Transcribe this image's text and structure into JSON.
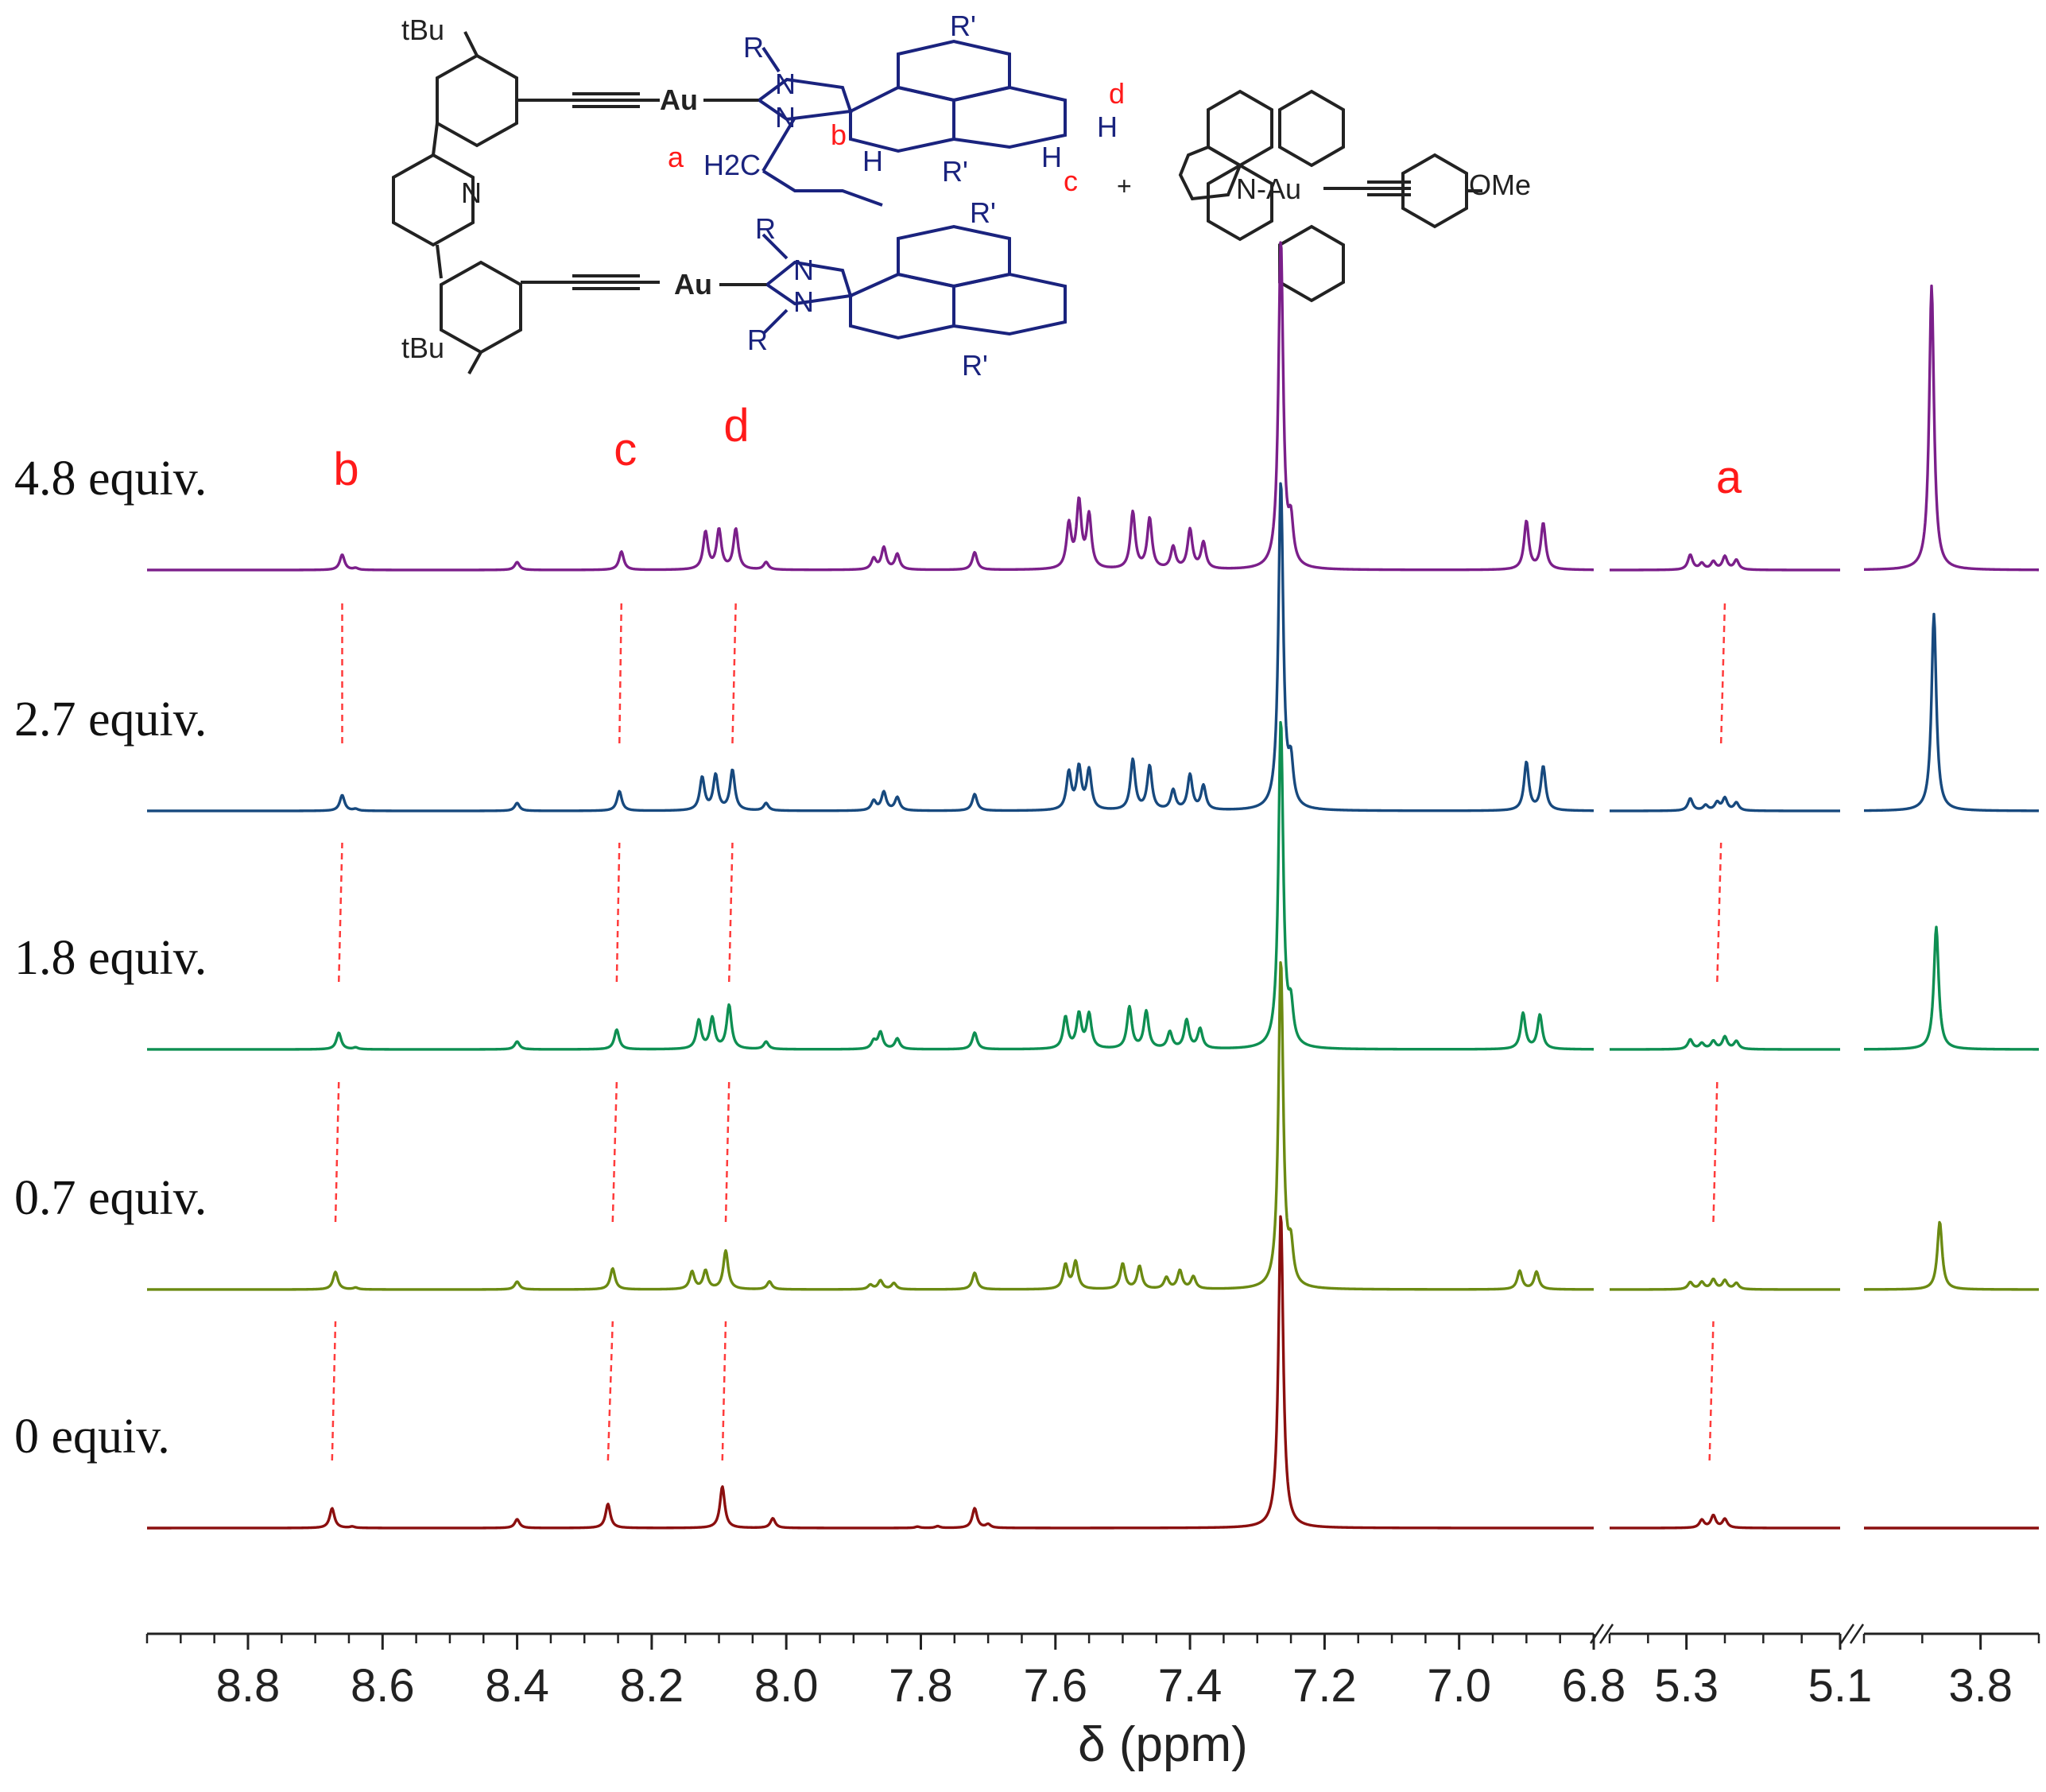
{
  "chart_data": {
    "type": "line",
    "title": "",
    "xlabel": "δ (ppm)",
    "ylabel": "",
    "grid": false,
    "axis_segments": [
      {
        "xlim": [
          8.95,
          6.8
        ],
        "ticks": [
          "8.8",
          "8.6",
          "8.4",
          "8.2",
          "8.0",
          "7.8",
          "7.6",
          "7.4",
          "7.2",
          "7.0",
          "6.8"
        ],
        "tick_values": [
          8.8,
          8.6,
          8.4,
          8.2,
          8.0,
          7.8,
          7.6,
          7.4,
          7.2,
          7.0,
          6.8
        ]
      },
      {
        "xlim": [
          5.4,
          5.1
        ],
        "ticks": [
          "5.3",
          "5.1"
        ],
        "tick_values": [
          5.3,
          5.1
        ]
      },
      {
        "xlim": [
          3.9,
          3.75
        ],
        "ticks": [
          "3.8"
        ],
        "tick_values": [
          3.8
        ]
      }
    ],
    "series": [
      {
        "name": "4.8 equiv.",
        "label": "4.8 equiv.",
        "color": "#7b1f8a",
        "peaks": [
          [
            8.66,
            0.35
          ],
          [
            8.64,
            0.04
          ],
          [
            8.4,
            0.18
          ],
          [
            8.245,
            0.42
          ],
          [
            8.12,
            0.85
          ],
          [
            8.1,
            0.9
          ],
          [
            8.075,
            0.92
          ],
          [
            8.03,
            0.17
          ],
          [
            7.87,
            0.25
          ],
          [
            7.855,
            0.5
          ],
          [
            7.835,
            0.35
          ],
          [
            7.72,
            0.4
          ],
          [
            7.58,
            1.0
          ],
          [
            7.565,
            1.5
          ],
          [
            7.55,
            1.2
          ],
          [
            7.485,
            1.3
          ],
          [
            7.46,
            1.15
          ],
          [
            7.425,
            0.5
          ],
          [
            7.4,
            0.9
          ],
          [
            7.38,
            0.6
          ],
          [
            7.265,
            7.5
          ],
          [
            7.25,
            0.9
          ],
          [
            6.9,
            1.1
          ],
          [
            6.875,
            1.05
          ],
          [
            5.295,
            0.34
          ],
          [
            5.28,
            0.14
          ],
          [
            5.265,
            0.18
          ],
          [
            5.25,
            0.3
          ],
          [
            5.235,
            0.22
          ],
          [
            3.842,
            6.5
          ]
        ]
      },
      {
        "name": "2.7 equiv.",
        "label": "2.7 equiv.",
        "color": "#17497e",
        "peaks": [
          [
            8.66,
            0.36
          ],
          [
            8.64,
            0.04
          ],
          [
            8.4,
            0.18
          ],
          [
            8.248,
            0.45
          ],
          [
            8.125,
            0.75
          ],
          [
            8.105,
            0.8
          ],
          [
            8.08,
            0.92
          ],
          [
            8.03,
            0.17
          ],
          [
            7.87,
            0.22
          ],
          [
            7.855,
            0.42
          ],
          [
            7.835,
            0.3
          ],
          [
            7.72,
            0.38
          ],
          [
            7.58,
            0.85
          ],
          [
            7.565,
            0.95
          ],
          [
            7.55,
            0.9
          ],
          [
            7.485,
            1.15
          ],
          [
            7.46,
            1.0
          ],
          [
            7.425,
            0.45
          ],
          [
            7.4,
            0.8
          ],
          [
            7.38,
            0.55
          ],
          [
            7.265,
            7.5
          ],
          [
            7.25,
            0.9
          ],
          [
            6.9,
            1.1
          ],
          [
            6.875,
            1.0
          ],
          [
            5.295,
            0.28
          ],
          [
            5.275,
            0.12
          ],
          [
            5.26,
            0.18
          ],
          [
            5.25,
            0.28
          ],
          [
            5.235,
            0.18
          ],
          [
            3.84,
            4.5
          ]
        ]
      },
      {
        "name": "1.8 equiv.",
        "label": "1.8 equiv.",
        "color": "#0e8f52",
        "peaks": [
          [
            8.665,
            0.38
          ],
          [
            8.64,
            0.04
          ],
          [
            8.4,
            0.18
          ],
          [
            8.252,
            0.45
          ],
          [
            8.13,
            0.65
          ],
          [
            8.11,
            0.7
          ],
          [
            8.085,
            1.0
          ],
          [
            8.03,
            0.17
          ],
          [
            7.87,
            0.18
          ],
          [
            7.86,
            0.38
          ],
          [
            7.835,
            0.24
          ],
          [
            7.72,
            0.38
          ],
          [
            7.585,
            0.72
          ],
          [
            7.565,
            0.78
          ],
          [
            7.55,
            0.78
          ],
          [
            7.49,
            0.95
          ],
          [
            7.465,
            0.85
          ],
          [
            7.43,
            0.38
          ],
          [
            7.405,
            0.65
          ],
          [
            7.385,
            0.45
          ],
          [
            7.265,
            7.5
          ],
          [
            7.25,
            0.8
          ],
          [
            6.905,
            0.82
          ],
          [
            6.88,
            0.78
          ],
          [
            5.295,
            0.22
          ],
          [
            5.28,
            0.13
          ],
          [
            5.265,
            0.18
          ],
          [
            5.25,
            0.28
          ],
          [
            5.235,
            0.18
          ],
          [
            3.838,
            2.8
          ]
        ]
      },
      {
        "name": "0.7 equiv.",
        "label": "0.7 equiv.",
        "color": "#6b8a12",
        "peaks": [
          [
            8.67,
            0.4
          ],
          [
            8.64,
            0.04
          ],
          [
            8.4,
            0.18
          ],
          [
            8.258,
            0.48
          ],
          [
            8.14,
            0.4
          ],
          [
            8.12,
            0.42
          ],
          [
            8.09,
            0.88
          ],
          [
            8.025,
            0.18
          ],
          [
            7.875,
            0.1
          ],
          [
            7.86,
            0.2
          ],
          [
            7.84,
            0.14
          ],
          [
            7.72,
            0.38
          ],
          [
            7.585,
            0.55
          ],
          [
            7.57,
            0.62
          ],
          [
            7.5,
            0.58
          ],
          [
            7.475,
            0.52
          ],
          [
            7.435,
            0.26
          ],
          [
            7.415,
            0.42
          ],
          [
            7.395,
            0.28
          ],
          [
            7.265,
            7.5
          ],
          [
            7.25,
            0.8
          ],
          [
            6.91,
            0.42
          ],
          [
            6.885,
            0.4
          ],
          [
            5.295,
            0.16
          ],
          [
            5.28,
            0.16
          ],
          [
            5.265,
            0.22
          ],
          [
            5.25,
            0.2
          ],
          [
            5.235,
            0.14
          ],
          [
            3.835,
            1.55
          ]
        ]
      },
      {
        "name": "0 equiv.",
        "label": "0 equiv.",
        "color": "#8b0f0f",
        "peaks": [
          [
            8.675,
            0.45
          ],
          [
            8.645,
            0.03
          ],
          [
            8.4,
            0.2
          ],
          [
            8.265,
            0.55
          ],
          [
            8.095,
            0.95
          ],
          [
            8.02,
            0.22
          ],
          [
            7.805,
            0.03
          ],
          [
            7.775,
            0.04
          ],
          [
            7.72,
            0.45
          ],
          [
            7.7,
            0.08
          ],
          [
            7.265,
            7.2
          ],
          [
            5.28,
            0.18
          ],
          [
            5.265,
            0.28
          ],
          [
            5.25,
            0.2
          ]
        ]
      }
    ],
    "annotations": [
      {
        "text": "b",
        "ppm": 8.66
      },
      {
        "text": "c",
        "ppm": 8.245
      },
      {
        "text": "d",
        "ppm": 8.08
      },
      {
        "text": "a",
        "ppm": 5.25
      }
    ],
    "shift_lines": [
      {
        "label": "b",
        "ppm": [
          8.675,
          8.67,
          8.665,
          8.66,
          8.66
        ]
      },
      {
        "label": "c",
        "ppm": [
          8.265,
          8.258,
          8.252,
          8.248,
          8.245
        ]
      },
      {
        "label": "d",
        "ppm": [
          8.095,
          8.09,
          8.085,
          8.08,
          8.075
        ]
      },
      {
        "label": "a",
        "ppm": [
          5.27,
          5.265,
          5.26,
          5.255,
          5.25
        ]
      }
    ]
  },
  "structure": {
    "tbu_top": "tBu",
    "tbu_bottom": "tBu",
    "au_top": "Au",
    "au_bottom": "Au",
    "n_pyridine": "N",
    "r_top": "R",
    "r_mid": "R",
    "r_bottom": "R",
    "n_labels": [
      "N",
      "N",
      "N",
      "N"
    ],
    "rprime": [
      "R'",
      "R'",
      "R'",
      "R'"
    ],
    "h_labels": [
      "H",
      "H",
      "H"
    ],
    "ch2_label": "H2C",
    "proton_labels": {
      "a": "a",
      "b": "b",
      "c": "c",
      "d": "d"
    },
    "plus": "+",
    "complex_label": "N-Au",
    "ome_label": "OMe"
  },
  "colors": {
    "annotation": "#ff1a1a",
    "dashed": "#ff3b3b",
    "molecule_navy": "#1a237e",
    "axis": "#222222"
  }
}
